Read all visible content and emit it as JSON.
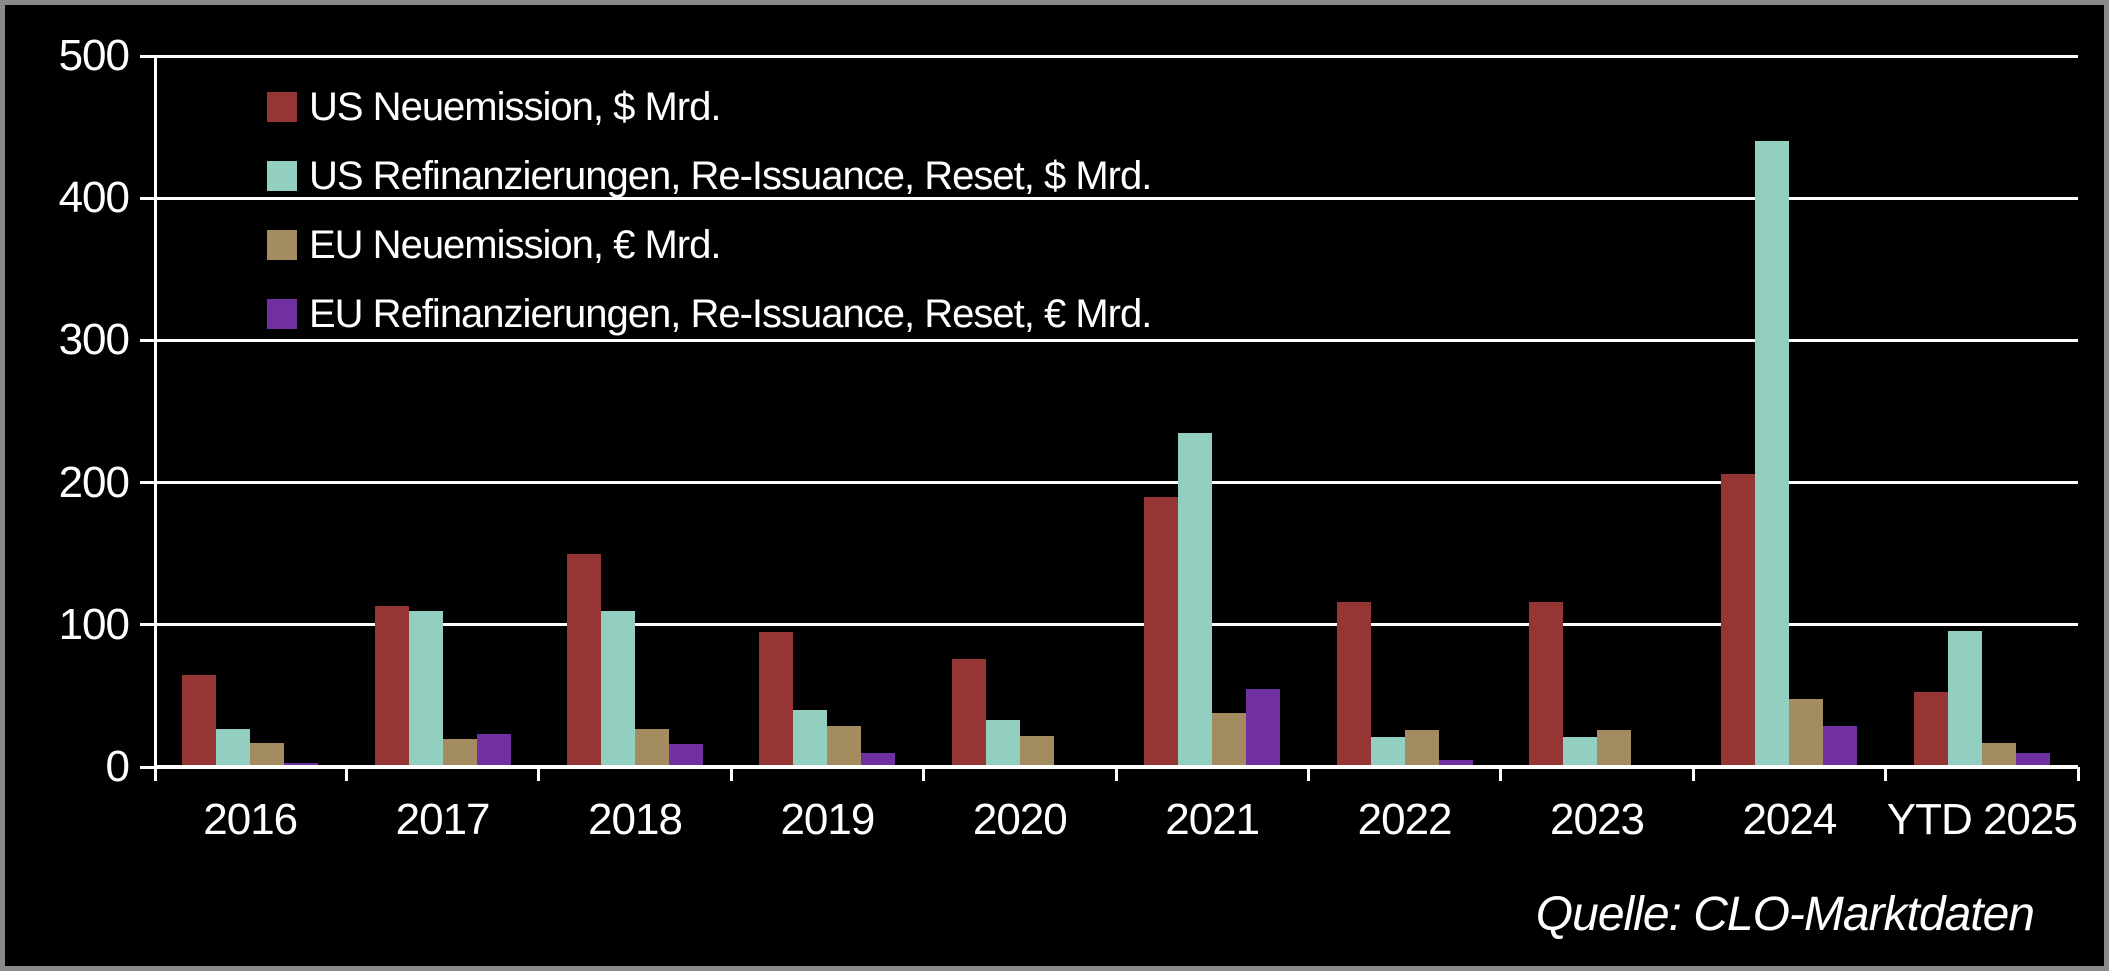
{
  "chart_data": {
    "type": "bar",
    "title": "",
    "categories": [
      "2016",
      "2017",
      "2018",
      "2019",
      "2020",
      "2021",
      "2022",
      "2023",
      "2024",
      "YTD 2025"
    ],
    "series": [
      {
        "key": "us-neuemission",
        "name": "US Neuemission, $ Mrd.",
        "color": "#963634",
        "values": [
          65,
          113,
          150,
          95,
          76,
          190,
          116,
          116,
          206,
          53
        ]
      },
      {
        "key": "us-refinanzierungen",
        "name": "US Refinanzierungen, Re-Issuance, Reset, $ Mrd.",
        "color": "#92CFC1",
        "values": [
          27,
          110,
          110,
          40,
          33,
          235,
          21,
          21,
          440,
          96
        ]
      },
      {
        "key": "eu-neuemission",
        "name": "EU Neuemission, € Mrd.",
        "color": "#A28C60",
        "values": [
          17,
          20,
          27,
          29,
          22,
          38,
          26,
          26,
          48,
          17
        ]
      },
      {
        "key": "eu-refinanzierungen",
        "name": "EU Refinanzierungen, Re-Issuance, Reset, € Mrd.",
        "color": "#7030A0",
        "values": [
          3,
          23,
          16,
          10,
          0,
          55,
          5,
          1,
          29,
          10
        ]
      }
    ],
    "ylim": [
      0,
      500
    ],
    "yticks": [
      0,
      100,
      200,
      300,
      400,
      500
    ],
    "grid": "horizontal-white",
    "legend_position": "top-left-inside",
    "background_color": "#000000",
    "text_color": "#FFFFFF",
    "source": "Quelle: CLO-Marktdaten"
  }
}
